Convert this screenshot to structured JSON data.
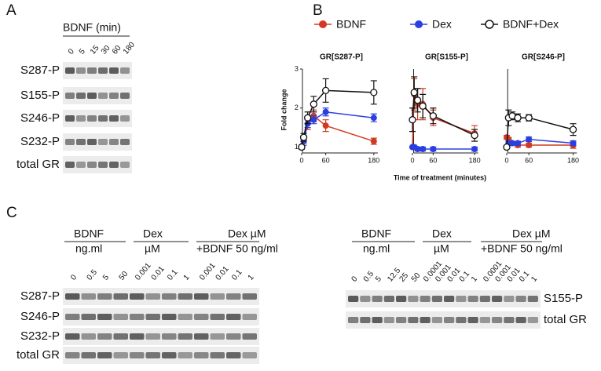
{
  "panel_a": {
    "label": "A",
    "title": "BDNF (min)",
    "lanes": [
      "0",
      "5",
      "15",
      "30",
      "60",
      "180"
    ],
    "rows": [
      "S287-P",
      "S155-P",
      "S246-P",
      "S232-P",
      "total GR"
    ]
  },
  "panel_b": {
    "label": "B"
  },
  "chart_data": [
    {
      "type": "line",
      "title": "GR[S287-P]",
      "ylabel": "Fold change",
      "x": [
        0,
        5,
        15,
        30,
        60,
        180
      ],
      "xlim": [
        -8,
        190
      ],
      "xticks": [
        0,
        60,
        180
      ],
      "ylim": [
        0.85,
        3
      ],
      "yticks": [
        1,
        2,
        3
      ],
      "series": [
        {
          "name": "BDNF",
          "color": "#d13a22",
          "marker": "filled",
          "values": [
            1,
            1.2,
            1.6,
            1.8,
            1.55,
            1.15
          ],
          "errors": [
            0.05,
            0.1,
            0.15,
            0.15,
            0.15,
            0.08
          ]
        },
        {
          "name": "Dex",
          "color": "#2b3fe0",
          "marker": "filled",
          "values": [
            1,
            1.15,
            1.6,
            1.7,
            1.9,
            1.75
          ],
          "errors": [
            0.05,
            0.1,
            0.1,
            0.1,
            0.1,
            0.1
          ]
        },
        {
          "name": "BDNF+Dex",
          "color": "#111111",
          "marker": "open",
          "values": [
            1,
            1.25,
            1.75,
            2.1,
            2.45,
            2.4
          ],
          "errors": [
            0.05,
            0.1,
            0.15,
            0.2,
            0.3,
            0.3
          ]
        }
      ]
    },
    {
      "type": "line",
      "title": "GR[S155-P]",
      "xlabel": "Time of treatment (minutes)",
      "x": [
        0,
        5,
        15,
        30,
        60,
        180
      ],
      "xlim": [
        -8,
        190
      ],
      "xticks": [
        0,
        60,
        180
      ],
      "ylim": [
        0.85,
        3
      ],
      "series": [
        {
          "name": "BDNF",
          "color": "#d13a22",
          "marker": "filled",
          "values": [
            1,
            2.35,
            2.1,
            2.1,
            1.75,
            1.35
          ],
          "errors": [
            0.02,
            0.4,
            0.4,
            0.4,
            0.2,
            0.2
          ]
        },
        {
          "name": "Dex",
          "color": "#2b3fe0",
          "marker": "filled",
          "values": [
            1,
            1,
            0.95,
            0.95,
            0.95,
            0.95
          ],
          "errors": [
            0.02,
            0.05,
            0.05,
            0.05,
            0.05,
            0.05
          ]
        },
        {
          "name": "BDNF+Dex",
          "color": "#111111",
          "marker": "open",
          "values": [
            1.7,
            2.4,
            2.2,
            2.05,
            1.8,
            1.3
          ],
          "errors": [
            0.3,
            0.4,
            0.3,
            0.3,
            0.2,
            0.15
          ]
        }
      ]
    },
    {
      "type": "line",
      "title": "GR[S246-P]",
      "x": [
        0,
        5,
        15,
        30,
        60,
        180
      ],
      "xlim": [
        -8,
        190
      ],
      "xticks": [
        0,
        60,
        180
      ],
      "ylim": [
        0.85,
        3
      ],
      "series": [
        {
          "name": "BDNF",
          "color": "#d13a22",
          "marker": "filled",
          "values": [
            1.25,
            1.2,
            1.1,
            1.05,
            1.05,
            1.05
          ],
          "errors": [
            0.05,
            0.05,
            0.05,
            0.05,
            0.05,
            0.08
          ]
        },
        {
          "name": "Dex",
          "color": "#2b3fe0",
          "marker": "filled",
          "values": [
            1,
            1.1,
            1.1,
            1.1,
            1.2,
            1.1
          ],
          "errors": [
            0.02,
            0.05,
            0.05,
            0.05,
            0.06,
            0.06
          ]
        },
        {
          "name": "BDNF+Dex",
          "color": "#111111",
          "marker": "open",
          "values": [
            1,
            1.75,
            1.8,
            1.75,
            1.75,
            1.45
          ],
          "errors": [
            0.02,
            0.2,
            0.1,
            0.1,
            0.08,
            0.15
          ]
        }
      ]
    }
  ],
  "panel_c": {
    "label": "C",
    "left": {
      "groups": [
        {
          "line1": "BDNF",
          "line2": "ng.ml"
        },
        {
          "line1": "Dex",
          "line2": "µM"
        },
        {
          "line1": "Dex µM",
          "line2": "+BDNF 50 ng/ml"
        }
      ],
      "lanes": [
        "0",
        "0.5",
        "5",
        "50",
        "0.001",
        "0.01",
        "0.1",
        "1",
        "0.001",
        "0.01",
        "0.1",
        "1"
      ],
      "rows": [
        "S287-P",
        "S246-P",
        "S232-P",
        "total GR"
      ]
    },
    "right": {
      "groups": [
        {
          "line1": "BDNF",
          "line2": "ng.ml"
        },
        {
          "line1": "Dex",
          "line2": "µM"
        },
        {
          "line1": "Dex µM",
          "line2": "+BDNF 50 ng/ml"
        }
      ],
      "lanes": [
        "0",
        "0.5",
        "5",
        "12.5",
        "25",
        "50",
        "0.0001",
        "0.001",
        "0.01",
        "0.1",
        "1",
        "0.0001",
        "0.001",
        "0.01",
        "0.1",
        "1"
      ],
      "rows": [
        "S155-P",
        "total GR"
      ]
    }
  }
}
